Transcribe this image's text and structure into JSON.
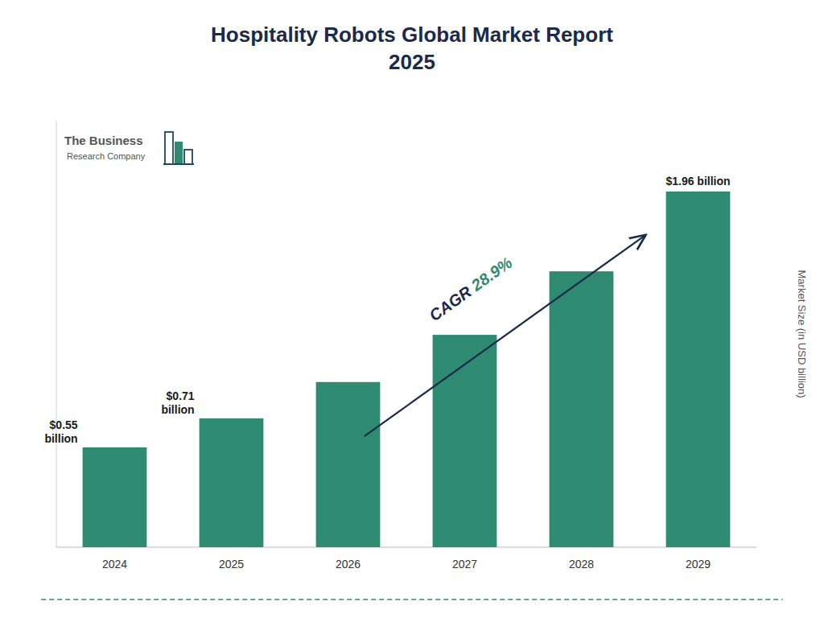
{
  "chart_data": {
    "type": "bar",
    "title": "Hospitality Robots Global Market Report\n2025",
    "y_label": "Market Size (in USD billion)",
    "categories": [
      "2024",
      "2025",
      "2026",
      "2027",
      "2028",
      "2029"
    ],
    "values": [
      0.55,
      0.71,
      0.91,
      1.17,
      1.52,
      1.96
    ],
    "value_labels": [
      "$0.55\nbillion",
      "$0.71\nbillion",
      null,
      null,
      null,
      "$1.96 billion"
    ],
    "data_labels": true,
    "color": "#2e8b72",
    "ylim": [
      0,
      2.35
    ],
    "grid": false,
    "tick_labels": "x",
    "annotations": [
      "CAGR ",
      "28.9%",
      "The Business",
      "Research Company"
    ]
  }
}
